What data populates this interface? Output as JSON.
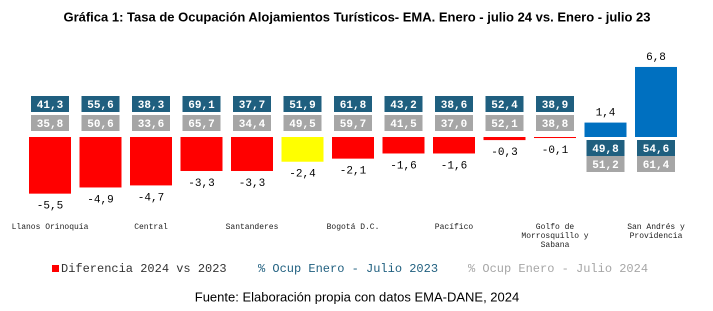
{
  "chart_data": {
    "type": "bar",
    "title": "Gráfica 1: Tasa de Ocupación Alojamientos Turísticos- EMA. Enero - julio 24 vs. Enero - julio 23",
    "categories": [
      "Llanos Orinoquía",
      null,
      "Central",
      null,
      "Santanderes",
      null,
      "Bogotá D.C.",
      null,
      "Pacífico",
      null,
      "Golfo de Morrosquillo y Sabana",
      null,
      "San Andrés y Providencia"
    ],
    "series": [
      {
        "name": "Diferencia 2024 vs 2023",
        "color": "#ff0000",
        "colors": [
          "#ff0000",
          "#ff0000",
          "#ff0000",
          "#ff0000",
          "#ff0000",
          "#ffff00",
          "#ff0000",
          "#ff0000",
          "#ff0000",
          "#ff0000",
          "#ff0000",
          "#0070c0",
          "#0070c0"
        ],
        "values": [
          -5.5,
          -4.9,
          -4.7,
          -3.3,
          -3.3,
          -2.4,
          -2.1,
          -1.6,
          -1.6,
          -0.3,
          -0.1,
          1.4,
          6.8
        ],
        "value_labels": [
          "-5,5",
          "-4,9",
          "-4,7",
          "-3,3",
          "-3,3",
          "-2,4",
          "-2,1",
          "-1,6",
          "-1,6",
          "-0,3",
          "-0,1",
          "1,4",
          "6,8"
        ]
      },
      {
        "name": "% Ocup Enero - Julio 2023",
        "color": "#1f5f7f",
        "values": [
          41.3,
          55.6,
          38.3,
          69.1,
          37.7,
          51.9,
          61.8,
          43.2,
          38.6,
          52.4,
          38.9,
          49.8,
          54.6
        ],
        "value_labels": [
          "41,3",
          "55,6",
          "38,3",
          "69,1",
          "37,7",
          "51,9",
          "61,8",
          "43,2",
          "38,6",
          "52,4",
          "38,9",
          "49,8",
          "54,6"
        ]
      },
      {
        "name": "% Ocup Enero - Julio 2024",
        "color": "#a6a6a6",
        "values": [
          35.8,
          50.6,
          33.6,
          65.7,
          34.4,
          49.5,
          59.7,
          41.5,
          37.0,
          52.1,
          38.8,
          51.2,
          61.4
        ],
        "value_labels": [
          "35,8",
          "50,6",
          "33,6",
          "65,7",
          "34,4",
          "49,5",
          "59,7",
          "41,5",
          "37,0",
          "52,1",
          "38,8",
          "51,2",
          "61,4"
        ]
      }
    ],
    "source": "Fuente: Elaboración propia con datos EMA-DANE, 2024"
  }
}
